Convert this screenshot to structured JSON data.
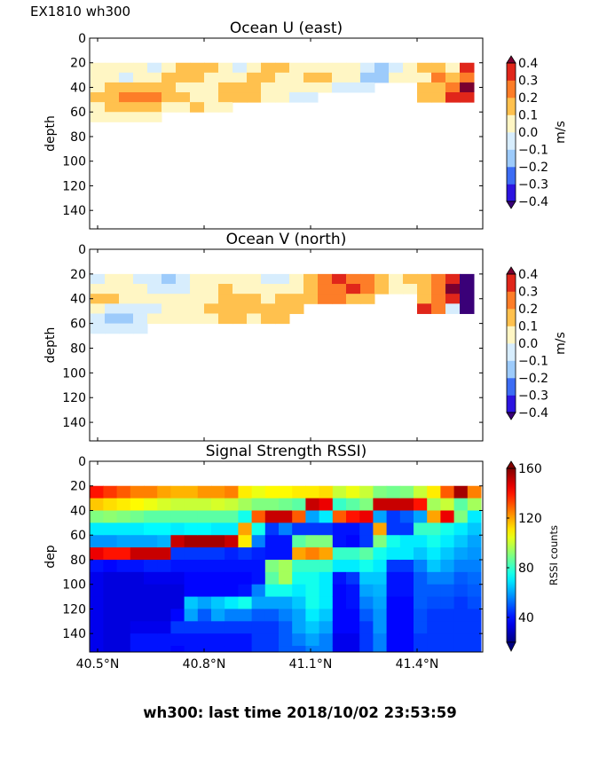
{
  "header": {
    "run_label": "EX1810 wh300"
  },
  "footer": {
    "text": "wh300: last time 2018/10/02 23:53:59"
  },
  "x_ticks": [
    40.5,
    40.8,
    41.1,
    41.4
  ],
  "x_tick_labels": [
    "40.5°N",
    "40.8°N",
    "41.1°N",
    "41.4°N"
  ],
  "xlim": [
    40.4775,
    41.585
  ],
  "chart_data": [
    {
      "type": "heatmap",
      "title": "Ocean U (east)",
      "ylabel": "depth",
      "ylim": [
        155,
        0
      ],
      "y_ticks": [
        0,
        20,
        40,
        60,
        80,
        100,
        120,
        140
      ],
      "y_tick_labels": [
        "0",
        "20",
        "40",
        "60",
        "80",
        "100",
        "120",
        "140"
      ],
      "grid": false,
      "colorbar": {
        "label": "m/s",
        "levels": [
          -0.4,
          -0.3,
          -0.2,
          -0.1,
          0.0,
          0.1,
          0.2,
          0.3,
          0.4
        ],
        "tick_labels": [
          "−0.4",
          "−0.3",
          "−0.2",
          "−0.1",
          "0.0",
          "0.1",
          "0.2",
          "0.3",
          "0.4"
        ],
        "colors": [
          "#3a0078",
          "#2c14e0",
          "#3c6cf4",
          "#9dcbfb",
          "#d7edfd",
          "#fff6c4",
          "#ffc14e",
          "#fd7d28",
          "#e0261a",
          "#7a0030"
        ]
      },
      "x": [
        40.5,
        40.54,
        40.58,
        40.62,
        40.66,
        40.7,
        40.74,
        40.78,
        40.82,
        40.86,
        40.9,
        40.94,
        40.98,
        41.02,
        41.06,
        41.1,
        41.14,
        41.18,
        41.22,
        41.26,
        41.3,
        41.34,
        41.38,
        41.42,
        41.46,
        41.5,
        41.54
      ],
      "y": [
        24,
        32,
        40,
        48,
        56,
        64
      ],
      "z_by_column": [
        [
          0.05,
          0.05,
          0.05,
          0.15,
          0.05,
          0.05
        ],
        [
          0.05,
          0.05,
          0.15,
          0.15,
          0.15,
          0.05
        ],
        [
          0.05,
          -0.05,
          0.15,
          0.25,
          0.15,
          0.05
        ],
        [
          0.05,
          0.05,
          0.15,
          0.25,
          0.15,
          0.05
        ],
        [
          -0.05,
          0.05,
          0.15,
          0.25,
          0.15,
          0.05
        ],
        [
          0.05,
          0.15,
          0.15,
          0.15,
          0.05,
          null
        ],
        [
          0.15,
          0.15,
          0.05,
          0.15,
          0.05,
          null
        ],
        [
          0.15,
          0.15,
          0.05,
          0.05,
          0.15,
          null
        ],
        [
          0.15,
          0.05,
          0.05,
          0.05,
          0.05,
          null
        ],
        [
          0.05,
          0.05,
          0.15,
          0.15,
          0.05,
          null
        ],
        [
          -0.05,
          0.05,
          0.15,
          0.15,
          null,
          null
        ],
        [
          0.05,
          0.15,
          0.15,
          0.15,
          null,
          null
        ],
        [
          0.15,
          0.15,
          0.05,
          0.05,
          null,
          null
        ],
        [
          0.15,
          0.05,
          0.05,
          0.05,
          null,
          null
        ],
        [
          0.05,
          0.05,
          0.05,
          -0.05,
          null,
          null
        ],
        [
          0.05,
          0.15,
          0.05,
          -0.05,
          null,
          null
        ],
        [
          0.05,
          0.15,
          0.05,
          null,
          null,
          null
        ],
        [
          0.05,
          0.05,
          -0.05,
          null,
          null,
          null
        ],
        [
          0.05,
          0.05,
          -0.05,
          null,
          null,
          null
        ],
        [
          -0.05,
          -0.15,
          -0.05,
          null,
          null,
          null
        ],
        [
          -0.15,
          -0.15,
          null,
          null,
          null,
          null
        ],
        [
          -0.05,
          0.05,
          null,
          null,
          null,
          null
        ],
        [
          0.05,
          0.05,
          null,
          null,
          null,
          null
        ],
        [
          0.15,
          0.05,
          0.15,
          0.15,
          null,
          null
        ],
        [
          0.15,
          0.25,
          0.15,
          0.15,
          null,
          null
        ],
        [
          0.05,
          0.15,
          0.25,
          0.35,
          null,
          null
        ],
        [
          0.35,
          0.25,
          0.45,
          0.35,
          null,
          null
        ]
      ]
    },
    {
      "type": "heatmap",
      "title": "Ocean V (north)",
      "ylabel": "depth",
      "ylim": [
        155,
        0
      ],
      "y_ticks": [
        0,
        20,
        40,
        60,
        80,
        100,
        120,
        140
      ],
      "y_tick_labels": [
        "0",
        "20",
        "40",
        "60",
        "80",
        "100",
        "120",
        "140"
      ],
      "grid": false,
      "colorbar": {
        "label": "m/s",
        "levels": [
          -0.4,
          -0.3,
          -0.2,
          -0.1,
          0.0,
          0.1,
          0.2,
          0.3,
          0.4
        ],
        "tick_labels": [
          "−0.4",
          "−0.3",
          "−0.2",
          "−0.1",
          "0.0",
          "0.1",
          "0.2",
          "0.3",
          "0.4"
        ],
        "colors": [
          "#3a0078",
          "#2c14e0",
          "#3c6cf4",
          "#9dcbfb",
          "#d7edfd",
          "#fff6c4",
          "#ffc14e",
          "#fd7d28",
          "#e0261a",
          "#7a0030"
        ]
      },
      "x": [
        40.5,
        40.54,
        40.58,
        40.62,
        40.66,
        40.7,
        40.74,
        40.78,
        40.82,
        40.86,
        40.9,
        40.94,
        40.98,
        41.02,
        41.06,
        41.1,
        41.14,
        41.18,
        41.22,
        41.26,
        41.3,
        41.34,
        41.38,
        41.42,
        41.46,
        41.5,
        41.54
      ],
      "y": [
        24,
        32,
        40,
        48,
        56,
        64
      ],
      "z_by_column": [
        [
          -0.05,
          0.05,
          0.15,
          0.05,
          -0.05,
          -0.05
        ],
        [
          0.05,
          0.05,
          0.15,
          -0.05,
          -0.15,
          -0.05
        ],
        [
          0.05,
          0.05,
          0.05,
          -0.05,
          -0.15,
          -0.05
        ],
        [
          -0.05,
          0.05,
          0.05,
          -0.05,
          -0.05,
          -0.05
        ],
        [
          -0.05,
          -0.05,
          0.05,
          -0.05,
          0.05,
          null
        ],
        [
          -0.15,
          -0.05,
          0.05,
          0.05,
          0.05,
          null
        ],
        [
          -0.05,
          -0.05,
          0.05,
          0.05,
          0.05,
          null
        ],
        [
          0.05,
          0.05,
          0.05,
          0.05,
          0.05,
          null
        ],
        [
          0.05,
          0.05,
          0.05,
          0.15,
          0.05,
          null
        ],
        [
          0.05,
          0.15,
          0.15,
          0.15,
          0.15,
          null
        ],
        [
          0.05,
          0.05,
          0.15,
          0.15,
          0.15,
          null
        ],
        [
          0.05,
          0.05,
          0.15,
          0.15,
          0.05,
          null
        ],
        [
          -0.05,
          0.05,
          0.05,
          0.15,
          0.15,
          null
        ],
        [
          -0.05,
          0.05,
          0.15,
          0.15,
          0.15,
          null
        ],
        [
          0.05,
          0.05,
          0.15,
          0.15,
          null,
          null
        ],
        [
          0.15,
          0.15,
          0.15,
          null,
          null,
          null
        ],
        [
          0.25,
          0.25,
          0.25,
          null,
          null,
          null
        ],
        [
          0.35,
          0.25,
          0.25,
          null,
          null,
          null
        ],
        [
          0.25,
          0.35,
          0.15,
          null,
          null,
          null
        ],
        [
          0.25,
          0.25,
          0.15,
          null,
          null,
          null
        ],
        [
          0.15,
          0.15,
          null,
          null,
          null,
          null
        ],
        [
          0.05,
          0.05,
          null,
          null,
          null,
          null
        ],
        [
          0.15,
          0.05,
          null,
          null,
          null,
          null
        ],
        [
          0.15,
          0.15,
          0.15,
          0.35,
          null,
          null
        ],
        [
          0.25,
          0.25,
          0.25,
          0.25,
          null,
          null
        ],
        [
          0.35,
          0.45,
          0.35,
          -0.05,
          null,
          null
        ],
        [
          -0.45,
          -0.45,
          -0.45,
          -0.45,
          null,
          null
        ]
      ]
    },
    {
      "type": "heatmap",
      "title": "Signal Strength RSSI)",
      "ylabel": "dep",
      "ylim": [
        155,
        0
      ],
      "y_ticks": [
        0,
        20,
        40,
        60,
        80,
        100,
        120,
        140
      ],
      "y_tick_labels": [
        "0",
        "20",
        "40",
        "60",
        "80",
        "100",
        "120",
        "140"
      ],
      "grid": false,
      "colorbar": {
        "label": "RSSI counts",
        "colormap": "jet",
        "clim": [
          20,
          160
        ],
        "ticks": [
          40,
          80,
          120,
          160
        ],
        "tick_labels": [
          "40",
          "80",
          "120",
          "160"
        ]
      },
      "x": [
        40.497,
        40.535,
        40.573,
        40.611,
        40.649,
        40.687,
        40.725,
        40.763,
        40.801,
        40.839,
        40.877,
        40.915,
        40.953,
        40.991,
        41.029,
        41.067,
        41.105,
        41.143,
        41.181,
        41.219,
        41.257,
        41.295,
        41.333,
        41.371,
        41.409,
        41.447,
        41.485,
        41.523,
        41.561
      ],
      "y": [
        25,
        35,
        45,
        55,
        65,
        75,
        85,
        95,
        105,
        115,
        125,
        135,
        145,
        155
      ],
      "z_by_column": [
        [
          140,
          115,
          90,
          70,
          58,
          145,
          40,
          35,
          35,
          35,
          35,
          35,
          35,
          35
        ],
        [
          135,
          112,
          92,
          70,
          58,
          140,
          38,
          33,
          33,
          33,
          33,
          33,
          33,
          33
        ],
        [
          130,
          110,
          90,
          70,
          60,
          140,
          40,
          33,
          33,
          33,
          33,
          33,
          33,
          33
        ],
        [
          125,
          108,
          88,
          70,
          60,
          150,
          40,
          33,
          33,
          33,
          33,
          35,
          40,
          40
        ],
        [
          125,
          105,
          85,
          72,
          60,
          150,
          42,
          35,
          33,
          33,
          33,
          35,
          40,
          40
        ],
        [
          120,
          102,
          85,
          72,
          62,
          150,
          42,
          35,
          33,
          33,
          33,
          35,
          40,
          40
        ],
        [
          118,
          100,
          85,
          70,
          150,
          45,
          40,
          35,
          33,
          33,
          38,
          45,
          40,
          38
        ],
        [
          118,
          100,
          85,
          72,
          155,
          45,
          40,
          38,
          38,
          65,
          60,
          45,
          40,
          40
        ],
        [
          122,
          100,
          85,
          72,
          155,
          45,
          40,
          38,
          38,
          60,
          50,
          45,
          40,
          40
        ],
        [
          122,
          102,
          85,
          70,
          155,
          45,
          40,
          38,
          38,
          65,
          60,
          45,
          40,
          40
        ],
        [
          125,
          100,
          85,
          70,
          150,
          42,
          40,
          38,
          38,
          70,
          55,
          45,
          40,
          40
        ],
        [
          110,
          95,
          75,
          120,
          110,
          45,
          40,
          38,
          40,
          75,
          55,
          45,
          40,
          40
        ],
        [
          105,
          90,
          130,
          75,
          55,
          42,
          40,
          40,
          55,
          60,
          50,
          45,
          45,
          45
        ],
        [
          108,
          90,
          150,
          45,
          40,
          40,
          90,
          85,
          75,
          60,
          50,
          45,
          45,
          45
        ],
        [
          108,
          88,
          150,
          55,
          40,
          40,
          95,
          95,
          75,
          60,
          55,
          50,
          50,
          50
        ],
        [
          110,
          85,
          130,
          45,
          85,
          120,
          80,
          75,
          70,
          65,
          60,
          60,
          55,
          50
        ],
        [
          110,
          150,
          60,
          45,
          90,
          125,
          80,
          75,
          75,
          75,
          70,
          65,
          60,
          55
        ],
        [
          112,
          145,
          70,
          45,
          90,
          120,
          80,
          70,
          70,
          70,
          65,
          60,
          55,
          55
        ],
        [
          100,
          80,
          130,
          40,
          40,
          80,
          70,
          40,
          38,
          38,
          38,
          38,
          35,
          35
        ],
        [
          105,
          85,
          140,
          40,
          38,
          80,
          70,
          45,
          40,
          40,
          38,
          38,
          35,
          35
        ],
        [
          100,
          90,
          145,
          45,
          45,
          85,
          75,
          65,
          60,
          55,
          50,
          45,
          45,
          45
        ],
        [
          90,
          150,
          60,
          120,
          90,
          75,
          70,
          65,
          62,
          60,
          58,
          58,
          55,
          55
        ],
        [
          88,
          150,
          45,
          45,
          75,
          70,
          45,
          40,
          40,
          38,
          38,
          38,
          38,
          38
        ],
        [
          90,
          150,
          50,
          45,
          70,
          70,
          45,
          40,
          40,
          38,
          38,
          38,
          38,
          38
        ],
        [
          100,
          140,
          60,
          80,
          70,
          65,
          55,
          50,
          50,
          50,
          48,
          48,
          45,
          45
        ],
        [
          110,
          95,
          120,
          80,
          75,
          70,
          65,
          55,
          50,
          48,
          45,
          45,
          45,
          45
        ],
        [
          130,
          100,
          145,
          75,
          70,
          65,
          60,
          55,
          50,
          48,
          45,
          45,
          45,
          45
        ],
        [
          155,
          85,
          90,
          70,
          65,
          60,
          55,
          50,
          48,
          45,
          45,
          45,
          45,
          45
        ],
        [
          125,
          95,
          70,
          65,
          60,
          58,
          55,
          52,
          50,
          48,
          45,
          45,
          45,
          45
        ]
      ]
    }
  ]
}
